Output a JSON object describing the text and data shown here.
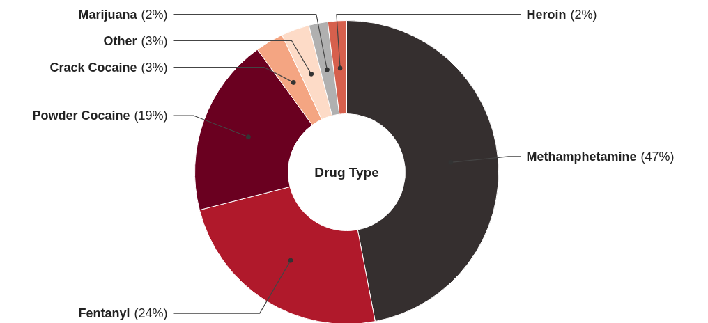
{
  "chart_data": {
    "type": "donut",
    "title": "Drug Type",
    "categories": [
      "Methamphetamine",
      "Fentanyl",
      "Powder Cocaine",
      "Crack Cocaine",
      "Other",
      "Marijuana",
      "Heroin"
    ],
    "values": [
      47,
      24,
      19,
      3,
      3,
      2,
      2
    ],
    "colors": [
      "#352f2f",
      "#b0192b",
      "#6a0020",
      "#f4a582",
      "#fddbc7",
      "#b0b0b0",
      "#d6604d"
    ],
    "value_labels": [
      "(47%)",
      "(24%)",
      "(19%)",
      "(3%)",
      "(3%)",
      "(2%)",
      "(2%)"
    ]
  }
}
